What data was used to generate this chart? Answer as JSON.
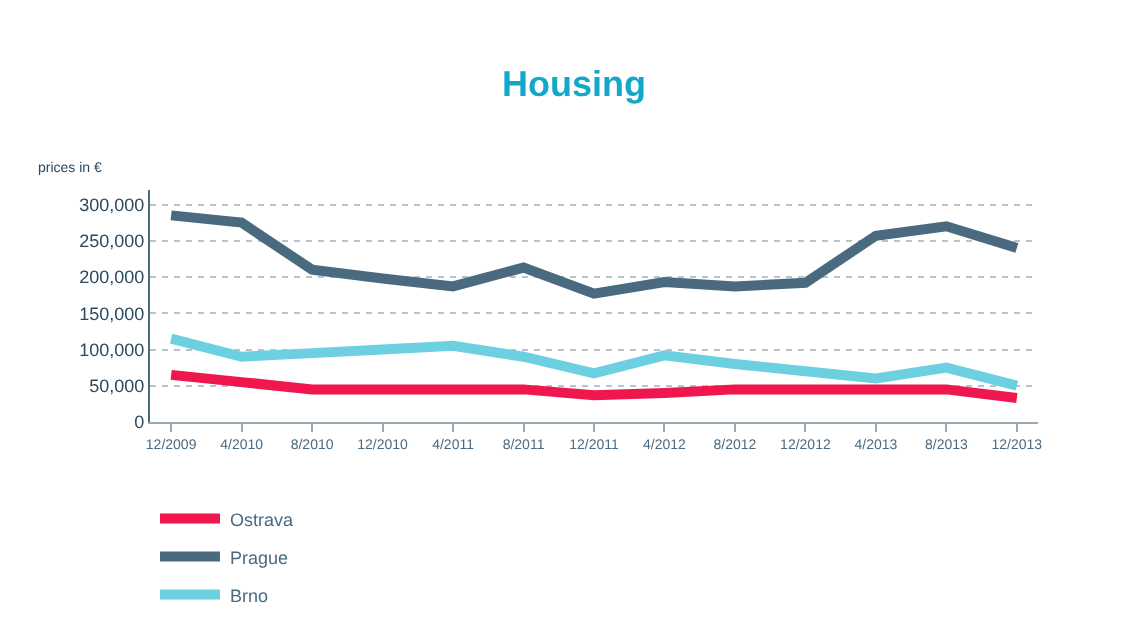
{
  "chart_data": {
    "type": "line",
    "title": "Housing",
    "ylabel": "prices in €",
    "categories": [
      "12/2009",
      "4/2010",
      "8/2010",
      "12/2010",
      "4/2011",
      "8/2011",
      "12/2011",
      "4/2012",
      "8/2012",
      "12/2012",
      "4/2013",
      "8/2013",
      "12/2013"
    ],
    "series": [
      {
        "name": "Ostrava",
        "color": "#f0174f",
        "values": [
          65000,
          55000,
          45000,
          45000,
          45000,
          45000,
          37000,
          40000,
          45000,
          45000,
          45000,
          45000,
          33000
        ]
      },
      {
        "name": "Prague",
        "color": "#4a6a80",
        "values": [
          285000,
          275000,
          210000,
          198000,
          187000,
          213000,
          177000,
          193000,
          187000,
          192000,
          257000,
          270000,
          240000
        ]
      },
      {
        "name": "Brno",
        "color": "#6dd0e0",
        "values": [
          115000,
          90000,
          95000,
          100000,
          105000,
          90000,
          67000,
          92000,
          80000,
          70000,
          60000,
          75000,
          50000
        ]
      }
    ],
    "ylim": [
      0,
      320000
    ],
    "yticks": [
      {
        "value": 0,
        "label": "0"
      },
      {
        "value": 50000,
        "label": "50,000"
      },
      {
        "value": 100000,
        "label": "100,000"
      },
      {
        "value": 150000,
        "label": "150,000"
      },
      {
        "value": 200000,
        "label": "200,000"
      },
      {
        "value": 250000,
        "label": "250,000"
      },
      {
        "value": 300000,
        "label": "300,000"
      }
    ],
    "grid": "y",
    "legend": "bottom left",
    "marker": "none",
    "line_style": "solid"
  }
}
